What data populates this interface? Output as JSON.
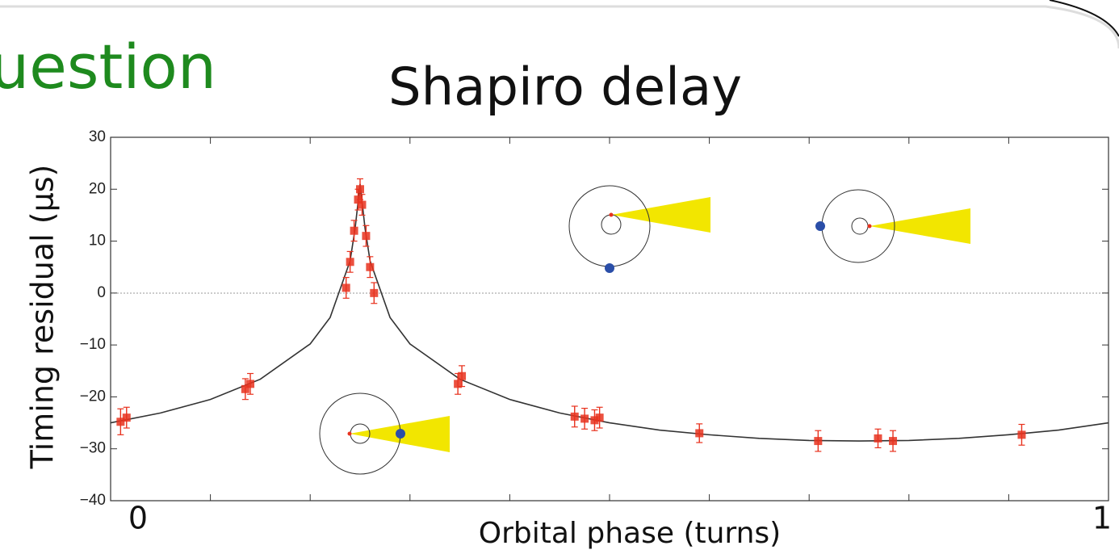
{
  "slide": {
    "heading_fragment": "uestion"
  },
  "chart_data": {
    "type": "scatter",
    "title": "Shapiro delay",
    "x_label": "Orbital phase (turns)",
    "y_label": "Timing residual (µs)",
    "xlim": [
      0,
      1
    ],
    "ylim": [
      -40,
      30
    ],
    "xticks": [
      0,
      1
    ],
    "yticks": [
      30,
      20,
      10,
      0,
      {
        "value": -10,
        "label": "−10"
      },
      {
        "value": -20,
        "label": "−20"
      },
      {
        "value": -30,
        "label": "−30"
      },
      {
        "value": -40,
        "label": "−40"
      }
    ],
    "series": [
      {
        "type": "line",
        "color": "#333333",
        "x": [
          0,
          0.05,
          0.1,
          0.15,
          0.2,
          0.22,
          0.24,
          0.245,
          0.25,
          0.255,
          0.26,
          0.28,
          0.3,
          0.35,
          0.4,
          0.45,
          0.5,
          0.55,
          0.6,
          0.65,
          0.7,
          0.75,
          0.8,
          0.85,
          0.9,
          0.95,
          1
        ],
        "values": [
          -25,
          -23.1,
          -20.5,
          -16.6,
          -9.8,
          -4.7,
          6.2,
          12.4,
          21,
          12.4,
          6.2,
          -4.7,
          -9.8,
          -16.6,
          -20.5,
          -23.1,
          -25,
          -26.4,
          -27.3,
          -28,
          -28.4,
          -28.5,
          -28.4,
          -28,
          -27.3,
          -26.4,
          -25
        ]
      },
      {
        "type": "errorbar",
        "color": "#e8321e",
        "x": [
          0.01,
          0.016,
          0.135,
          0.14,
          0.236,
          0.24,
          0.244,
          0.248,
          0.25,
          0.252,
          0.256,
          0.26,
          0.264,
          0.348,
          0.352,
          0.465,
          0.475,
          0.485,
          0.49,
          0.59,
          0.709,
          0.769,
          0.784,
          0.913
        ],
        "values": [
          -24.8,
          -24,
          -18.5,
          -17.5,
          1,
          6,
          12,
          18,
          20,
          17,
          11,
          5,
          0,
          -17.5,
          -16,
          -23.8,
          -24.2,
          -24.5,
          -24,
          -27,
          -28.5,
          -28,
          -28.5,
          -27.3
        ],
        "errors": [
          2.5,
          2,
          2,
          2,
          2,
          2,
          2,
          2,
          2,
          2,
          2,
          2,
          2,
          2,
          2,
          2,
          2,
          2,
          2,
          1.8,
          2,
          1.8,
          2,
          2
        ]
      }
    ]
  }
}
